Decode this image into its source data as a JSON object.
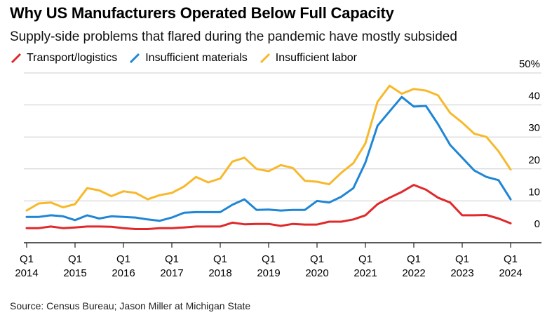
{
  "title": "Why US Manufacturers Operated Below Full Capacity",
  "subtitle": "Supply-side problems that flared during the pandemic have mostly subsided",
  "source": "Source: Census Bureau; Jason Miller at Michigan State",
  "colors": {
    "transport": "#e0292b",
    "materials": "#1f86d6",
    "labor": "#f7b92b",
    "grid": "#cccccc",
    "axis": "#222222"
  },
  "chart_data": {
    "type": "line",
    "ylim": [
      0,
      50
    ],
    "y_ticks": [
      {
        "v": 0,
        "label": "0"
      },
      {
        "v": 10,
        "label": "10"
      },
      {
        "v": 20,
        "label": "20"
      },
      {
        "v": 30,
        "label": "30"
      },
      {
        "v": 40,
        "label": "40"
      },
      {
        "v": 50,
        "label": "50%"
      }
    ],
    "x_ticks": [
      {
        "t": 0,
        "q": "Q1",
        "year": "2014"
      },
      {
        "t": 4,
        "q": "Q1",
        "year": "2015"
      },
      {
        "t": 8,
        "q": "Q1",
        "year": "2016"
      },
      {
        "t": 12,
        "q": "Q1",
        "year": "2017"
      },
      {
        "t": 16,
        "q": "Q1",
        "year": "2018"
      },
      {
        "t": 20,
        "q": "Q1",
        "year": "2019"
      },
      {
        "t": 24,
        "q": "Q1",
        "year": "2020"
      },
      {
        "t": 28,
        "q": "Q1",
        "year": "2021"
      },
      {
        "t": 32,
        "q": "Q1",
        "year": "2022"
      },
      {
        "t": 36,
        "q": "Q1",
        "year": "2023"
      },
      {
        "t": 40,
        "q": "Q1",
        "year": "2024"
      }
    ],
    "x_range": [
      0,
      40
    ],
    "series": [
      {
        "name": "Transport/logistics",
        "color": "#e0292b",
        "values": [
          1.5,
          1.5,
          2,
          1.5,
          1.7,
          2,
          2,
          1.9,
          1.5,
          1.2,
          1.2,
          1.5,
          1.5,
          1.7,
          2,
          2,
          2,
          3.2,
          2.7,
          2.8,
          2.8,
          2.2,
          2.8,
          2.6,
          2.6,
          3.5,
          3.5,
          4.2,
          5.5,
          9,
          11,
          12.8,
          15,
          13.5,
          11,
          9.5,
          5.5,
          5.5,
          5.6,
          4.5,
          3
        ]
      },
      {
        "name": "Insufficient materials",
        "color": "#1f86d6",
        "values": [
          5,
          5,
          5.5,
          5.2,
          4,
          5.5,
          4.5,
          5.2,
          5,
          4.8,
          4.2,
          3.8,
          4.8,
          6.3,
          6.5,
          6.5,
          6.5,
          8.8,
          10.5,
          7.2,
          7.3,
          7,
          7.2,
          7.2,
          10,
          9.5,
          11.3,
          14,
          22,
          33.5,
          38,
          42.5,
          39.5,
          39.7,
          34,
          27.5,
          23.5,
          19.5,
          17.5,
          16.5,
          10.5
        ]
      },
      {
        "name": "Insufficient labor",
        "color": "#f7b92b",
        "values": [
          7,
          9.2,
          9.5,
          8,
          9,
          14,
          13.3,
          11.5,
          13,
          12.5,
          10.5,
          11.8,
          12.5,
          14.5,
          17.5,
          15.8,
          17,
          22.3,
          23.5,
          20,
          19.3,
          21.2,
          20.3,
          16.3,
          16,
          15.2,
          18.8,
          21.8,
          28,
          41,
          46,
          43.5,
          45,
          44.5,
          43,
          37.5,
          34.5,
          31,
          30,
          25.5,
          19.8
        ]
      }
    ]
  }
}
